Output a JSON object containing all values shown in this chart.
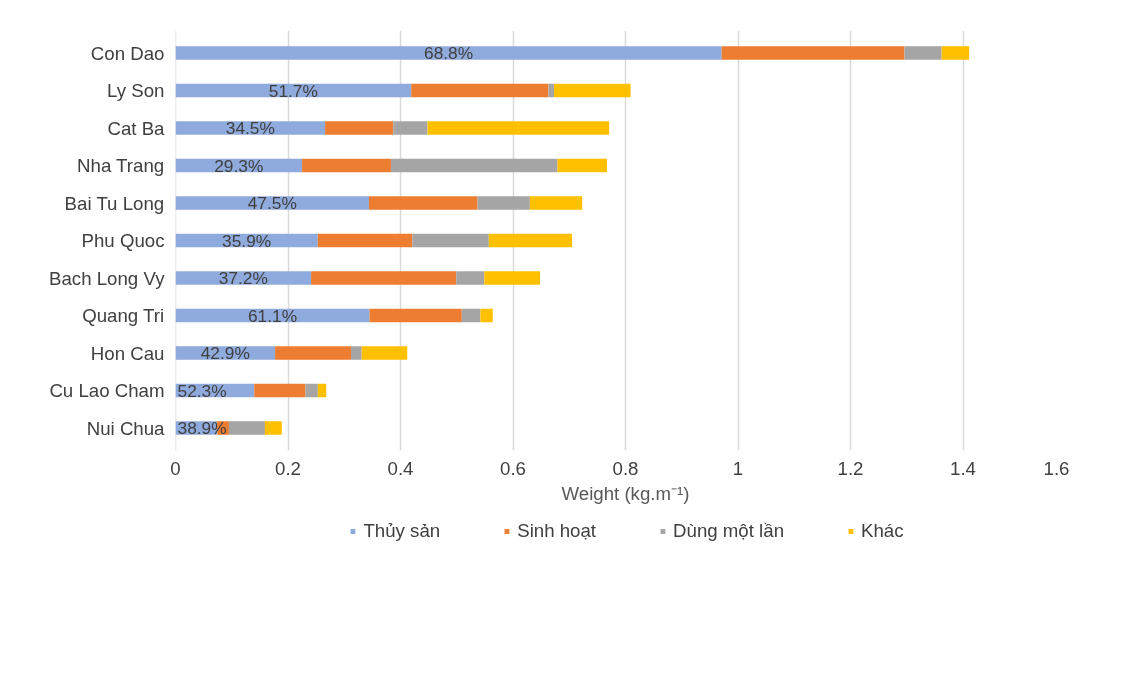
{
  "chart_data": {
    "type": "bar",
    "orientation": "horizontal",
    "stacked": true,
    "categories": [
      "Con Dao",
      "Ly Son",
      "Cat Ba",
      "Nha Trang",
      "Bai Tu Long",
      "Phu Quoc",
      "Bach Long Vy",
      "Quang Tri",
      "Hon Cau",
      "Cu Lao Cham",
      "Nui Chua"
    ],
    "series": [
      {
        "name": "Thủy sản",
        "color": "#8faadc",
        "values": [
          0.971,
          0.419,
          0.266,
          0.225,
          0.344,
          0.253,
          0.241,
          0.345,
          0.177,
          0.14,
          0.074
        ]
      },
      {
        "name": "Sinh hoạt",
        "color": "#ed7d31",
        "values": [
          0.325,
          0.244,
          0.121,
          0.158,
          0.193,
          0.168,
          0.258,
          0.164,
          0.135,
          0.091,
          0.021
        ]
      },
      {
        "name": "Dùng một lần",
        "color": "#a5a5a5",
        "values": [
          0.066,
          0.01,
          0.061,
          0.296,
          0.093,
          0.136,
          0.05,
          0.033,
          0.019,
          0.022,
          0.064
        ]
      },
      {
        "name": "Khác",
        "color": "#ffc000",
        "values": [
          0.049,
          0.136,
          0.323,
          0.088,
          0.093,
          0.148,
          0.099,
          0.022,
          0.081,
          0.015,
          0.03
        ]
      }
    ],
    "xlabel": "Weight (kg.m⁻¹)",
    "xlim": [
      0,
      1.6
    ],
    "xticks": [
      0,
      0.2,
      0.4,
      0.6,
      0.8,
      1,
      1.2,
      1.4,
      1.6
    ],
    "grid": "x",
    "legend": "bottom",
    "annotations": [
      "68.8%",
      "51.7%",
      "34.5%",
      "29.3%",
      "47.5%",
      "35.9%",
      "37.2%",
      "61.1%",
      "42.9%",
      "52.3%",
      "38.9%"
    ]
  }
}
